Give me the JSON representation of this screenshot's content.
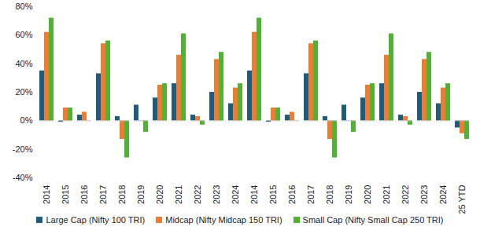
{
  "chart_data": {
    "type": "bar",
    "categories": [
      "2014",
      "2015",
      "2016",
      "2017",
      "2018",
      "2019",
      "2020",
      "2021",
      "2022",
      "2023",
      "2024",
      "2014",
      "2015",
      "2016",
      "2017",
      "2018",
      "2019",
      "2020",
      "2021",
      "2022",
      "2023",
      "2024",
      "2025 YTD"
    ],
    "series": [
      {
        "name": "Large Cap (Nifty 100 TRI)",
        "color": "#1f5c7a",
        "values": [
          35,
          -1,
          4,
          33,
          3,
          11,
          16,
          26,
          4,
          20,
          12,
          35,
          -1,
          4,
          33,
          3,
          11,
          16,
          26,
          4,
          20,
          12,
          -5
        ]
      },
      {
        "name": "Midcap (Nifty Midcap 150 TRI)",
        "color": "#ed7d31",
        "values": [
          62,
          9,
          6,
          54,
          -13,
          0,
          25,
          46,
          3,
          43,
          23,
          62,
          9,
          6,
          54,
          -13,
          0,
          25,
          46,
          3,
          43,
          23,
          -9
        ]
      },
      {
        "name": "Small Cap (Nifty Small Cap 250 TRI)",
        "color": "#52b236",
        "values": [
          72,
          9,
          0,
          56,
          -26,
          -8,
          26,
          61,
          -3,
          48,
          26,
          72,
          9,
          0,
          56,
          -26,
          -8,
          26,
          61,
          -3,
          48,
          26,
          -13
        ]
      }
    ],
    "ylim": [
      -40,
      80
    ],
    "yticks": [
      {
        "value": -40,
        "label": "-40%"
      },
      {
        "value": -20,
        "label": "-20%"
      },
      {
        "value": 0,
        "label": "0%"
      },
      {
        "value": 20,
        "label": "20%"
      },
      {
        "value": 40,
        "label": "40%"
      },
      {
        "value": 60,
        "label": "60%"
      },
      {
        "value": 80,
        "label": "80%"
      }
    ],
    "grid": false,
    "legend": "bottom"
  }
}
